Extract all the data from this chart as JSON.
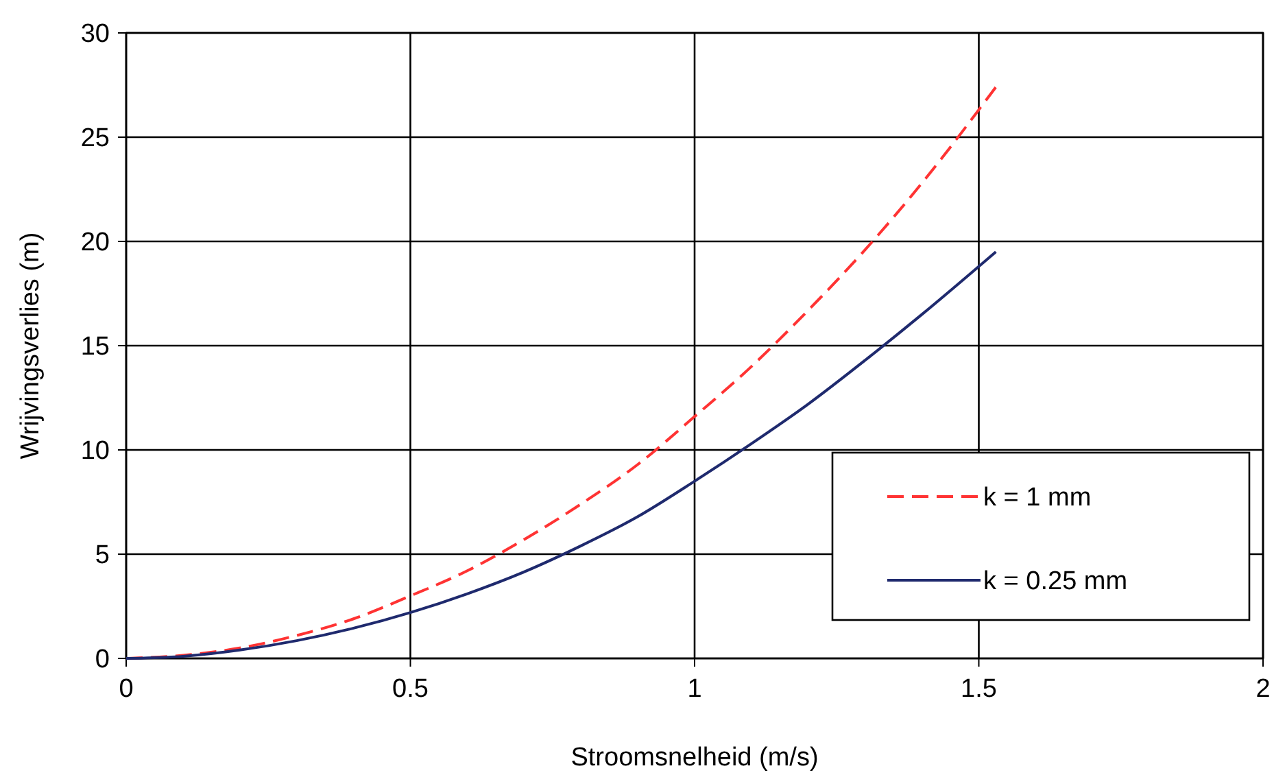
{
  "chart_data": {
    "type": "line",
    "xlabel": "Stroomsnelheid (m/s)",
    "ylabel": "Wrijvingsverlies (m)",
    "xlim": [
      0,
      2
    ],
    "xticks": [
      0,
      0.5,
      1,
      1.5,
      2
    ],
    "ylim": [
      0,
      30
    ],
    "yticks": [
      0,
      5,
      10,
      15,
      20,
      25,
      30
    ],
    "grid": true,
    "legend": "right",
    "marker": "none",
    "series": [
      {
        "name": "k = 1 mm",
        "color": "#ff3333",
        "line_style": "dashed",
        "x": [
          0,
          0.1,
          0.2,
          0.3,
          0.4,
          0.5,
          0.6,
          0.7,
          0.8,
          0.9,
          1.0,
          1.1,
          1.2,
          1.3,
          1.4,
          1.53
        ],
        "values": [
          0,
          0.15,
          0.5,
          1.1,
          1.9,
          3.0,
          4.2,
          5.7,
          7.4,
          9.3,
          11.6,
          14.0,
          16.7,
          19.6,
          22.8,
          27.4
        ]
      },
      {
        "name": "k = 0.25 mm",
        "color": "#1f2a6e",
        "line_style": "solid",
        "x": [
          0,
          0.1,
          0.2,
          0.3,
          0.4,
          0.5,
          0.6,
          0.7,
          0.8,
          0.9,
          1.0,
          1.1,
          1.2,
          1.3,
          1.4,
          1.53
        ],
        "values": [
          0,
          0.1,
          0.4,
          0.85,
          1.45,
          2.2,
          3.1,
          4.15,
          5.4,
          6.8,
          8.5,
          10.3,
          12.2,
          14.3,
          16.5,
          19.5
        ]
      }
    ]
  }
}
